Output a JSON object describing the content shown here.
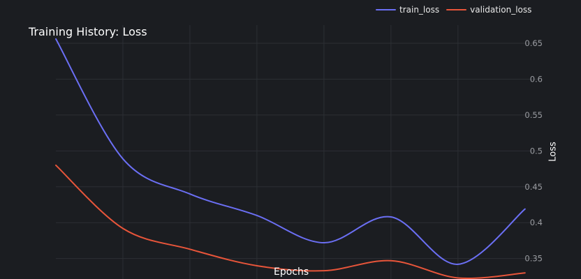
{
  "chart_data": {
    "type": "line",
    "title": "Training History: Loss",
    "xlabel": "Epochs",
    "ylabel": "Loss",
    "x": [
      0,
      1,
      2,
      3,
      4,
      5,
      6,
      7
    ],
    "xlim": [
      0,
      7.2
    ],
    "ylim": [
      0.3215,
      0.6753
    ],
    "yticks": [
      0.35,
      0.4,
      0.45,
      0.5,
      0.55,
      0.6,
      0.65
    ],
    "ytick_labels": [
      "0.35",
      "0.4",
      "0.45",
      "0.5",
      "0.55",
      "0.6",
      "0.65"
    ],
    "xgrid": [
      1,
      2,
      3,
      4,
      5,
      6
    ],
    "y_axis_side": "right",
    "grid": true,
    "legend_position": "top-right",
    "series": [
      {
        "name": "train_loss",
        "color": "#6b6ff4",
        "values": [
          0.656,
          0.489,
          0.44,
          0.41,
          0.372,
          0.408,
          0.342,
          0.419
        ]
      },
      {
        "name": "validation_loss",
        "color": "#e8553a",
        "values": [
          0.48,
          0.392,
          0.363,
          0.34,
          0.333,
          0.347,
          0.323,
          0.33
        ]
      }
    ]
  }
}
